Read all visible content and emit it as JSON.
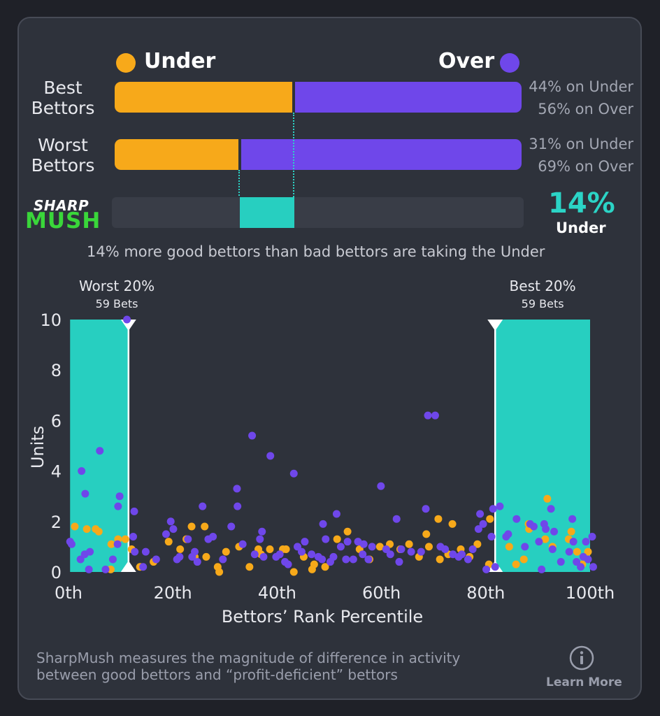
{
  "legend": {
    "under_label": "Under",
    "over_label": "Over",
    "under_color": "#f7a91a",
    "over_color": "#6f47ea"
  },
  "rows": [
    {
      "label_line1": "Best",
      "label_line2": "Bettors",
      "under_pct": 44,
      "over_pct": 56,
      "under_text": "44% on Under",
      "over_text": "56% on Over"
    },
    {
      "label_line1": "Worst",
      "label_line2": "Bettors",
      "under_pct": 31,
      "over_pct": 69,
      "under_text": "31% on Under",
      "over_text": "69% on Over"
    }
  ],
  "sharpmush": {
    "logo_top": "SHARP",
    "logo_bottom": "MUSH",
    "difference_value": "14%",
    "difference_side": "Under",
    "accent_color": "#2bd4c6",
    "caption": "14% more good bettors than bad bettors are taking the Under"
  },
  "chart_data": {
    "type": "scatter",
    "xlabel": "Bettors’ Rank Percentile",
    "ylabel": "Units",
    "xlim": [
      0,
      100
    ],
    "ylim": [
      0,
      10
    ],
    "x_tick_labels": [
      "0th",
      "20th",
      "40th",
      "60th",
      "80th",
      "100th"
    ],
    "x_tick_values": [
      0,
      20,
      40,
      60,
      80,
      100
    ],
    "y_tick_values": [
      0,
      2,
      4,
      6,
      8,
      10
    ],
    "y_tick_labels": [
      "0",
      "2",
      "4",
      "6",
      "8",
      "10"
    ],
    "bands": [
      {
        "name": "Worst 20%",
        "sub": "59 Bets",
        "x0": 0.3,
        "x1": 11.5,
        "marker_x": 11.5
      },
      {
        "name": "Best 20%",
        "sub": "59 Bets",
        "x0": 81.8,
        "x1": 100,
        "marker_x": 81.8
      }
    ],
    "series": [
      {
        "name": "Under",
        "color": "#f7a91a",
        "points": [
          [
            1.2,
            1.8
          ],
          [
            3.5,
            1.7
          ],
          [
            5.8,
            1.6
          ],
          [
            5.2,
            1.7
          ],
          [
            8.2,
            1.1
          ],
          [
            9.5,
            1.3
          ],
          [
            8.1,
            0.1
          ],
          [
            10.9,
            1.3
          ],
          [
            12.1,
            0.9
          ],
          [
            13.7,
            0.2
          ],
          [
            16.3,
            0.4
          ],
          [
            19.2,
            1.2
          ],
          [
            21.4,
            0.9
          ],
          [
            22.6,
            1.3
          ],
          [
            23.6,
            1.8
          ],
          [
            24.2,
            0.6
          ],
          [
            26.1,
            1.8
          ],
          [
            26.4,
            0.6
          ],
          [
            28.6,
            0.2
          ],
          [
            28.9,
            0
          ],
          [
            30.2,
            0.8
          ],
          [
            32.7,
            1
          ],
          [
            34.7,
            0.2
          ],
          [
            36.4,
            0.9
          ],
          [
            36.9,
            0.7
          ],
          [
            38.6,
            0.9
          ],
          [
            41.1,
            0.9
          ],
          [
            41.7,
            0.9
          ],
          [
            43.2,
            0
          ],
          [
            45.1,
            0.6
          ],
          [
            46.7,
            0.1
          ],
          [
            47.1,
            0.3
          ],
          [
            49.2,
            0.2
          ],
          [
            51.5,
            1.3
          ],
          [
            53.5,
            1.6
          ],
          [
            55.8,
            0.9
          ],
          [
            57.7,
            0.5
          ],
          [
            59.7,
            1
          ],
          [
            61.6,
            1.1
          ],
          [
            63.6,
            0.9
          ],
          [
            65.3,
            1.1
          ],
          [
            67.2,
            0.6
          ],
          [
            68.6,
            1.5
          ],
          [
            69.1,
            1
          ],
          [
            70.9,
            2.1
          ],
          [
            71.2,
            0.5
          ],
          [
            72.8,
            0.7
          ],
          [
            73.6,
            1.9
          ],
          [
            75.2,
            0.9
          ],
          [
            76.9,
            0.6
          ],
          [
            78.4,
            1.1
          ],
          [
            80.6,
            0.3
          ],
          [
            80.8,
            2.1
          ],
          [
            84.5,
            1
          ],
          [
            85.8,
            0.3
          ],
          [
            87.3,
            0.5
          ],
          [
            88.2,
            1.9
          ],
          [
            88.3,
            1.7
          ],
          [
            91.4,
            1.3
          ],
          [
            91.8,
            2.9
          ],
          [
            92.8,
            1
          ],
          [
            95.9,
            1.3
          ],
          [
            96.4,
            1.6
          ],
          [
            97.5,
            0.8
          ],
          [
            98.5,
            0.3
          ],
          [
            99.6,
            0.8
          ]
        ]
      },
      {
        "name": "Over",
        "color": "#6f47ea",
        "points": [
          [
            0.3,
            1.2
          ],
          [
            0.6,
            1.1
          ],
          [
            2.3,
            0.5
          ],
          [
            2.5,
            4
          ],
          [
            3.1,
            0.7
          ],
          [
            3.2,
            3.1
          ],
          [
            3.9,
            0.1
          ],
          [
            4.1,
            0.8
          ],
          [
            6,
            4.8
          ],
          [
            7.1,
            0.1
          ],
          [
            8.5,
            0.5
          ],
          [
            9.4,
            1.1
          ],
          [
            9.5,
            2.6
          ],
          [
            9.8,
            3
          ],
          [
            11.2,
            10
          ],
          [
            12.4,
            1.4
          ],
          [
            12.6,
            2.4
          ],
          [
            12.7,
            0.8
          ],
          [
            14.3,
            0.2
          ],
          [
            14.8,
            0.8
          ],
          [
            16.8,
            0.5
          ],
          [
            18.7,
            1.5
          ],
          [
            19.6,
            2
          ],
          [
            20.1,
            1.7
          ],
          [
            20.8,
            0.5
          ],
          [
            21.3,
            0.6
          ],
          [
            22.9,
            1.3
          ],
          [
            23.7,
            0.6
          ],
          [
            24.2,
            0.8
          ],
          [
            24.7,
            0.4
          ],
          [
            25.7,
            2.6
          ],
          [
            26.8,
            1.3
          ],
          [
            27.7,
            1.4
          ],
          [
            29.6,
            0.5
          ],
          [
            31.2,
            1.8
          ],
          [
            32.3,
            3.3
          ],
          [
            32.4,
            2.6
          ],
          [
            33.4,
            1.1
          ],
          [
            35.2,
            5.4
          ],
          [
            35.7,
            0.7
          ],
          [
            36.7,
            1.3
          ],
          [
            37.1,
            1.6
          ],
          [
            37.4,
            0.6
          ],
          [
            38.7,
            4.6
          ],
          [
            39.8,
            0.6
          ],
          [
            40.5,
            0.7
          ],
          [
            41.5,
            0.4
          ],
          [
            42.1,
            0.3
          ],
          [
            43.2,
            3.9
          ],
          [
            43.9,
            1
          ],
          [
            44.7,
            0.8
          ],
          [
            45.3,
            1.2
          ],
          [
            46.6,
            0.7
          ],
          [
            47.9,
            0.6
          ],
          [
            48.6,
            0.5
          ],
          [
            48.8,
            1.9
          ],
          [
            49.3,
            1.3
          ],
          [
            50.2,
            0.4
          ],
          [
            50.8,
            0.6
          ],
          [
            51.4,
            2.3
          ],
          [
            52.2,
            1
          ],
          [
            53.2,
            0.5
          ],
          [
            53.5,
            1.2
          ],
          [
            54.6,
            0.5
          ],
          [
            55.5,
            1.2
          ],
          [
            56.4,
            0.7
          ],
          [
            56.6,
            1.1
          ],
          [
            57.5,
            0.5
          ],
          [
            58.2,
            1
          ],
          [
            59.9,
            3.4
          ],
          [
            60.9,
            0.9
          ],
          [
            61.7,
            0.7
          ],
          [
            62.9,
            2.1
          ],
          [
            63.4,
            0.4
          ],
          [
            63.8,
            0.9
          ],
          [
            65.7,
            0.8
          ],
          [
            67.6,
            0.8
          ],
          [
            68.5,
            2.5
          ],
          [
            68.9,
            6.2
          ],
          [
            70.3,
            6.2
          ],
          [
            71.3,
            1
          ],
          [
            72.2,
            0.9
          ],
          [
            73.7,
            0.7
          ],
          [
            74.8,
            0.6
          ],
          [
            75.4,
            0.7
          ],
          [
            76.6,
            0.5
          ],
          [
            77.5,
            0.9
          ],
          [
            78.6,
            1.7
          ],
          [
            78.9,
            2.3
          ],
          [
            79.5,
            1.9
          ],
          [
            80.1,
            0.1
          ],
          [
            81.1,
            1.4
          ],
          [
            81.4,
            2.5
          ],
          [
            81.8,
            0.2
          ],
          [
            82.7,
            2.6
          ],
          [
            83.9,
            1.4
          ],
          [
            84.3,
            1.5
          ],
          [
            85.9,
            2.1
          ],
          [
            87.5,
            1
          ],
          [
            88.5,
            1.9
          ],
          [
            89.2,
            1.8
          ],
          [
            90.2,
            1.2
          ],
          [
            90.7,
            0.1
          ],
          [
            91.2,
            1.9
          ],
          [
            91.5,
            1.7
          ],
          [
            92.5,
            2.5
          ],
          [
            92.8,
            0.9
          ],
          [
            93.1,
            1.6
          ],
          [
            94.4,
            0.4
          ],
          [
            96,
            0.8
          ],
          [
            96.6,
            2.1
          ],
          [
            96.8,
            1.2
          ],
          [
            97.4,
            0.4
          ],
          [
            98.2,
            0.2
          ],
          [
            98.7,
            0.6
          ],
          [
            99.2,
            1.2
          ],
          [
            99.6,
            0.5
          ],
          [
            100.4,
            1.4
          ],
          [
            100.6,
            0.2
          ]
        ]
      }
    ]
  },
  "footer": {
    "line1": "SharpMush measures the magnitude of difference in activity",
    "line2": "between good bettors and “profit-deficient” bettors",
    "learn_more": "Learn More",
    "info_icon": "info-icon"
  }
}
